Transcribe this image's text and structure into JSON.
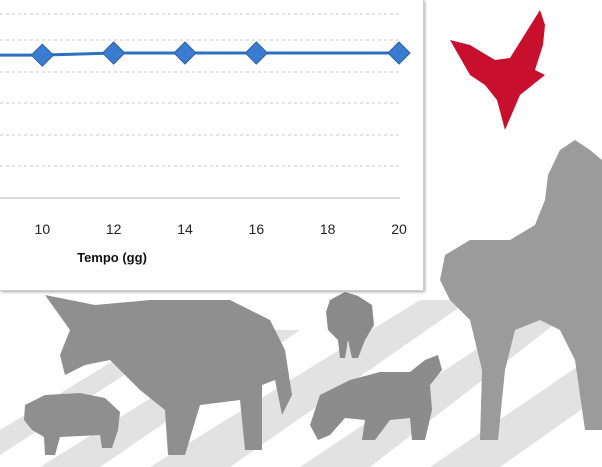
{
  "chart_data": {
    "type": "line",
    "title": "",
    "xlabel": "Tempo (gg)",
    "ylabel": "",
    "x_ticks": [
      10,
      12,
      14,
      16,
      18,
      20
    ],
    "x_visible_range": [
      8,
      20
    ],
    "grid": true,
    "series": [
      {
        "color": "#2e6fbf",
        "marker": "diamond",
        "x": [
          10,
          12,
          14,
          16,
          20
        ],
        "y": [
          0.985,
          1.0,
          1.0,
          1.0,
          1.0
        ]
      }
    ]
  },
  "colors": {
    "line": "#2e6fbf",
    "marker": "#3a7ccf",
    "grid": "#c8c8c8",
    "bird": "#c8102e",
    "animals": "#9a9a9a",
    "stripes": "#dcdcdc"
  },
  "icons": [
    "red-bird-logo-icon",
    "horse-silhouette",
    "cow-silhouette",
    "pig-silhouette",
    "hen-silhouette",
    "dog-silhouette"
  ]
}
